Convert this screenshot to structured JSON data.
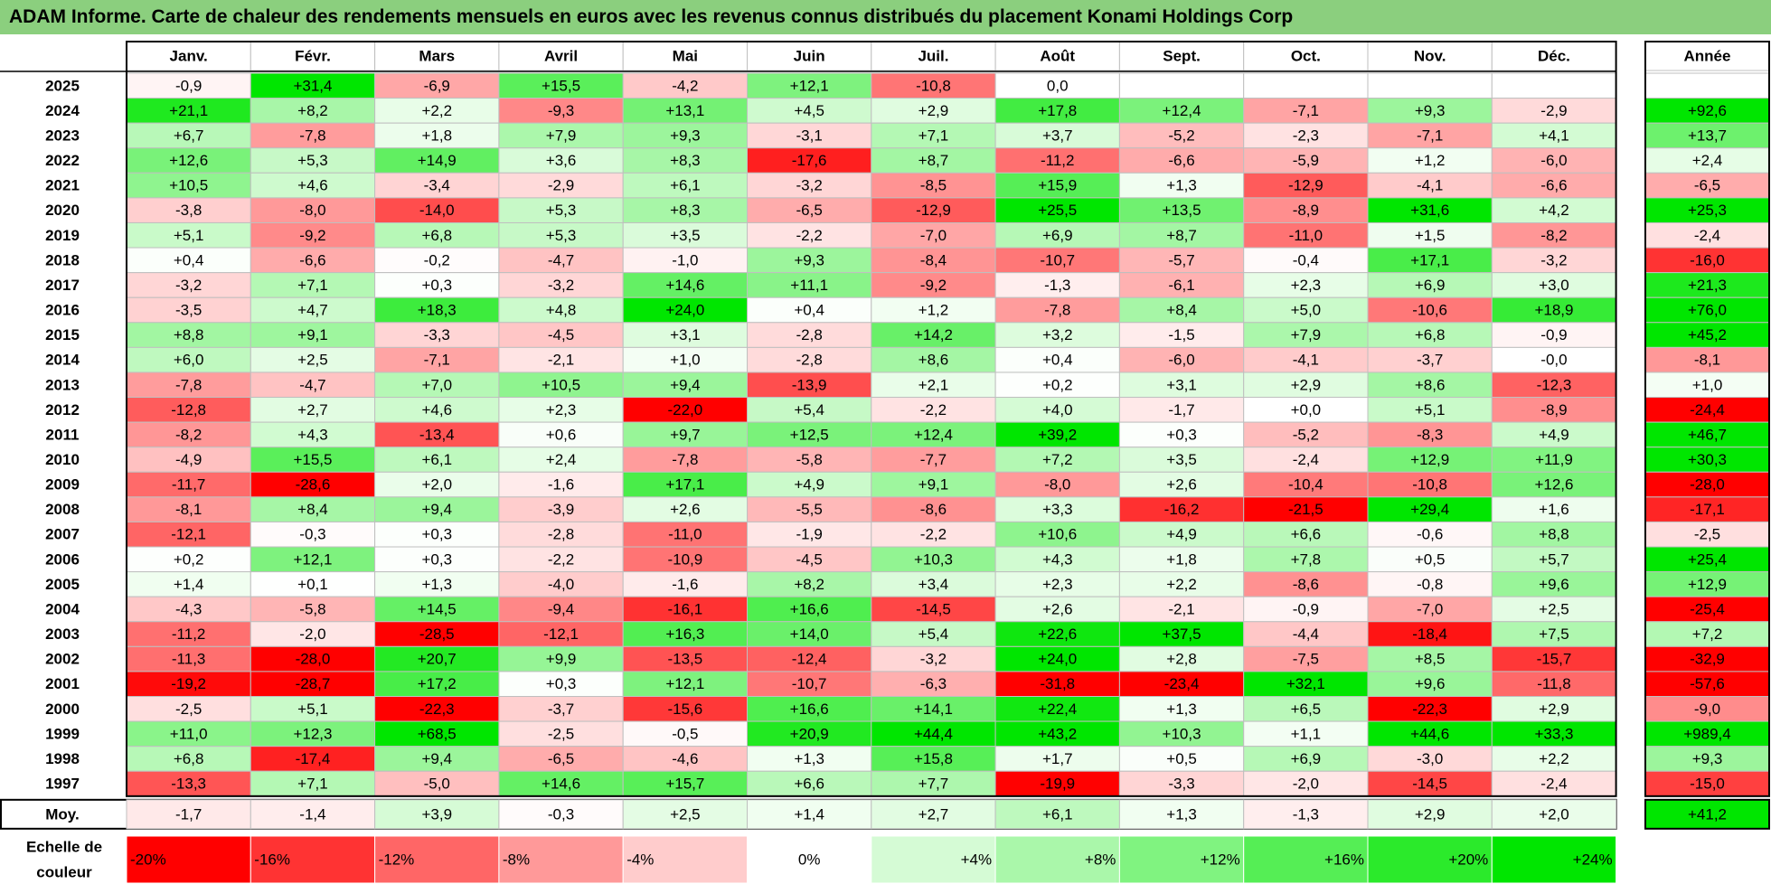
{
  "title": "ADAM Informe. Carte de chaleur des rendements mensuels en euros avec les revenus connus distribués du placement Konami Holdings Corp",
  "colors": {
    "title_bg": "#8bcf7e",
    "negative": "#ff0000",
    "positive": "#00e600",
    "neutral": "#ffffff",
    "grid": "#bfbfbf",
    "frame": "#000000"
  },
  "chart_data": {
    "type": "heatmap",
    "title": "ADAM Informe. Carte de chaleur des rendements mensuels en euros avec les revenus connus distribués du placement Konami Holdings Corp",
    "columns": [
      "Janv.",
      "Févr.",
      "Mars",
      "Avril",
      "Mai",
      "Juin",
      "Juil.",
      "Août",
      "Sept.",
      "Oct.",
      "Nov.",
      "Déc."
    ],
    "annual_header": "Année",
    "rows": [
      {
        "year": "2025",
        "values": [
          "-0,9",
          "+31,4",
          "-6,9",
          "+15,5",
          "-4,2",
          "+12,1",
          "-10,8",
          "0,0",
          "",
          "",
          "",
          ""
        ],
        "annual": ""
      },
      {
        "year": "2024",
        "values": [
          "+21,1",
          "+8,2",
          "+2,2",
          "-9,3",
          "+13,1",
          "+4,5",
          "+2,9",
          "+17,8",
          "+12,4",
          "-7,1",
          "+9,3",
          "-2,9"
        ],
        "annual": "+92,6"
      },
      {
        "year": "2023",
        "values": [
          "+6,7",
          "-7,8",
          "+1,8",
          "+7,9",
          "+9,3",
          "-3,1",
          "+7,1",
          "+3,7",
          "-5,2",
          "-2,3",
          "-7,1",
          "+4,1"
        ],
        "annual": "+13,7"
      },
      {
        "year": "2022",
        "values": [
          "+12,6",
          "+5,3",
          "+14,9",
          "+3,6",
          "+8,3",
          "-17,6",
          "+8,7",
          "-11,2",
          "-6,6",
          "-5,9",
          "+1,2",
          "-6,0"
        ],
        "annual": "+2,4"
      },
      {
        "year": "2021",
        "values": [
          "+10,5",
          "+4,6",
          "-3,4",
          "-2,9",
          "+6,1",
          "-3,2",
          "-8,5",
          "+15,9",
          "+1,3",
          "-12,9",
          "-4,1",
          "-6,6"
        ],
        "annual": "-6,5"
      },
      {
        "year": "2020",
        "values": [
          "-3,8",
          "-8,0",
          "-14,0",
          "+5,3",
          "+8,3",
          "-6,5",
          "-12,9",
          "+25,5",
          "+13,5",
          "-8,9",
          "+31,6",
          "+4,2"
        ],
        "annual": "+25,3"
      },
      {
        "year": "2019",
        "values": [
          "+5,1",
          "-9,2",
          "+6,8",
          "+5,3",
          "+3,5",
          "-2,2",
          "-7,0",
          "+6,9",
          "+8,7",
          "-11,0",
          "+1,5",
          "-8,2"
        ],
        "annual": "-2,4"
      },
      {
        "year": "2018",
        "values": [
          "+0,4",
          "-6,6",
          "-0,2",
          "-4,7",
          "-1,0",
          "+9,3",
          "-8,4",
          "-10,7",
          "-5,7",
          "-0,4",
          "+17,1",
          "-3,2"
        ],
        "annual": "-16,0"
      },
      {
        "year": "2017",
        "values": [
          "-3,2",
          "+7,1",
          "+0,3",
          "-3,2",
          "+14,6",
          "+11,1",
          "-9,2",
          "-1,3",
          "-6,1",
          "+2,3",
          "+6,9",
          "+3,0"
        ],
        "annual": "+21,3"
      },
      {
        "year": "2016",
        "values": [
          "-3,5",
          "+4,7",
          "+18,3",
          "+4,8",
          "+24,0",
          "+0,4",
          "+1,2",
          "-7,8",
          "+8,4",
          "+5,0",
          "-10,6",
          "+18,9"
        ],
        "annual": "+76,0"
      },
      {
        "year": "2015",
        "values": [
          "+8,8",
          "+9,1",
          "-3,3",
          "-4,5",
          "+3,1",
          "-2,8",
          "+14,2",
          "+3,2",
          "-1,5",
          "+7,9",
          "+6,8",
          "-0,9"
        ],
        "annual": "+45,2"
      },
      {
        "year": "2014",
        "values": [
          "+6,0",
          "+2,5",
          "-7,1",
          "-2,1",
          "+1,0",
          "-2,8",
          "+8,6",
          "+0,4",
          "-6,0",
          "-4,1",
          "-3,7",
          "-0,0"
        ],
        "annual": "-8,1"
      },
      {
        "year": "2013",
        "values": [
          "-7,8",
          "-4,7",
          "+7,0",
          "+10,5",
          "+9,4",
          "-13,9",
          "+2,1",
          "+0,2",
          "+3,1",
          "+2,9",
          "+8,6",
          "-12,3"
        ],
        "annual": "+1,0"
      },
      {
        "year": "2012",
        "values": [
          "-12,8",
          "+2,7",
          "+4,6",
          "+2,3",
          "-22,0",
          "+5,4",
          "-2,2",
          "+4,0",
          "-1,7",
          "+0,0",
          "+5,1",
          "-8,9"
        ],
        "annual": "-24,4"
      },
      {
        "year": "2011",
        "values": [
          "-8,2",
          "+4,3",
          "-13,4",
          "+0,6",
          "+9,7",
          "+12,5",
          "+12,4",
          "+39,2",
          "+0,3",
          "-5,2",
          "-8,3",
          "+4,9"
        ],
        "annual": "+46,7"
      },
      {
        "year": "2010",
        "values": [
          "-4,9",
          "+15,5",
          "+6,1",
          "+2,4",
          "-7,8",
          "-5,8",
          "-7,7",
          "+7,2",
          "+3,5",
          "-2,4",
          "+12,9",
          "+11,9"
        ],
        "annual": "+30,3"
      },
      {
        "year": "2009",
        "values": [
          "-11,7",
          "-28,6",
          "+2,0",
          "-1,6",
          "+17,1",
          "+4,9",
          "+9,1",
          "-8,0",
          "+2,6",
          "-10,4",
          "-10,8",
          "+12,6"
        ],
        "annual": "-28,0"
      },
      {
        "year": "2008",
        "values": [
          "-8,1",
          "+8,4",
          "+9,4",
          "-3,9",
          "+2,6",
          "-5,5",
          "-8,6",
          "+3,3",
          "-16,2",
          "-21,5",
          "+29,4",
          "+1,6"
        ],
        "annual": "-17,1"
      },
      {
        "year": "2007",
        "values": [
          "-12,1",
          "-0,3",
          "+0,3",
          "-2,8",
          "-11,0",
          "-1,9",
          "-2,2",
          "+10,6",
          "+4,9",
          "+6,6",
          "-0,6",
          "+8,8"
        ],
        "annual": "-2,5"
      },
      {
        "year": "2006",
        "values": [
          "+0,2",
          "+12,1",
          "+0,3",
          "-2,2",
          "-10,9",
          "-4,5",
          "+10,3",
          "+4,3",
          "+1,8",
          "+7,8",
          "+0,5",
          "+5,7"
        ],
        "annual": "+25,4"
      },
      {
        "year": "2005",
        "values": [
          "+1,4",
          "+0,1",
          "+1,3",
          "-4,0",
          "-1,6",
          "+8,2",
          "+3,4",
          "+2,3",
          "+2,2",
          "-8,6",
          "-0,8",
          "+9,6"
        ],
        "annual": "+12,9"
      },
      {
        "year": "2004",
        "values": [
          "-4,3",
          "-5,8",
          "+14,5",
          "-9,4",
          "-16,1",
          "+16,6",
          "-14,5",
          "+2,6",
          "-2,1",
          "-0,9",
          "-7,0",
          "+2,5"
        ],
        "annual": "-25,4"
      },
      {
        "year": "2003",
        "values": [
          "-11,2",
          "-2,0",
          "-28,5",
          "-12,1",
          "+16,3",
          "+14,0",
          "+5,4",
          "+22,6",
          "+37,5",
          "-4,4",
          "-18,4",
          "+7,5"
        ],
        "annual": "+7,2"
      },
      {
        "year": "2002",
        "values": [
          "-11,3",
          "-28,0",
          "+20,7",
          "+9,9",
          "-13,5",
          "-12,4",
          "-3,2",
          "+24,0",
          "+2,8",
          "-7,5",
          "+8,5",
          "-15,7"
        ],
        "annual": "-32,9"
      },
      {
        "year": "2001",
        "values": [
          "-19,2",
          "-28,7",
          "+17,2",
          "+0,3",
          "+12,1",
          "-10,7",
          "-6,3",
          "-31,8",
          "-23,4",
          "+32,1",
          "+9,6",
          "-11,8"
        ],
        "annual": "-57,6"
      },
      {
        "year": "2000",
        "values": [
          "-2,5",
          "+5,1",
          "-22,3",
          "-3,7",
          "-15,6",
          "+16,6",
          "+14,1",
          "+22,4",
          "+1,3",
          "+6,5",
          "-22,3",
          "+2,9"
        ],
        "annual": "-9,0"
      },
      {
        "year": "1999",
        "values": [
          "+11,0",
          "+12,3",
          "+68,5",
          "-2,5",
          "-0,5",
          "+20,9",
          "+44,4",
          "+43,2",
          "+10,3",
          "+1,1",
          "+44,6",
          "+33,3"
        ],
        "annual": "+989,4"
      },
      {
        "year": "1998",
        "values": [
          "+6,8",
          "-17,4",
          "+9,4",
          "-6,5",
          "-4,6",
          "+1,3",
          "+15,8",
          "+1,7",
          "+0,5",
          "+6,9",
          "-3,0",
          "+2,2"
        ],
        "annual": "+9,3"
      },
      {
        "year": "1997",
        "values": [
          "-13,3",
          "+7,1",
          "-5,0",
          "+14,6",
          "+15,7",
          "+6,6",
          "+7,7",
          "-19,9",
          "-3,3",
          "-2,0",
          "-14,5",
          "-2,4"
        ],
        "annual": "-15,0"
      }
    ],
    "average": {
      "label": "Moy.",
      "values": [
        "-1,7",
        "-1,4",
        "+3,9",
        "-0,3",
        "+2,5",
        "+1,4",
        "+2,7",
        "+6,1",
        "+1,3",
        "-1,3",
        "+2,9",
        "+2,0"
      ],
      "annual": "+41,2"
    },
    "scale": {
      "label_line1": "Echelle de",
      "label_line2": "couleur",
      "stops": [
        "-20%",
        "-16%",
        "-12%",
        "-8%",
        "-4%",
        "0%",
        "+4%",
        "+8%",
        "+12%",
        "+16%",
        "+20%",
        "+24%"
      ]
    }
  }
}
